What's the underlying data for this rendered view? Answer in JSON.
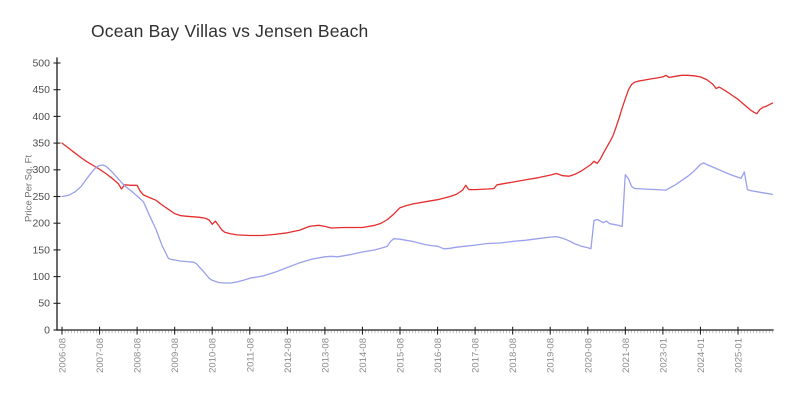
{
  "title": "Ocean Bay Villas vs Jensen Beach",
  "colors": {
    "series_red": "#e62e2e",
    "series_blue": "#9ba0ec",
    "axis": "#1c1c1c",
    "major_tick": "#222222",
    "minor_tick": "#999999",
    "x_tick_label": "#8c8c8c",
    "y_tick_label": "#4d4d4d",
    "axis_title": "#6e6e6e",
    "title_text": "#303030",
    "background": "#ffffff"
  },
  "chart_data": {
    "type": "line",
    "title": "Ocean Bay Villas vs Jensen Beach",
    "xlabel": "",
    "ylabel": "Price Per Sq. Ft",
    "ylim": [
      0,
      500
    ],
    "y_ticks": [
      0,
      50,
      100,
      150,
      200,
      250,
      300,
      350,
      400,
      450,
      500
    ],
    "grid": false,
    "legend": "none",
    "x_tick_labels": [
      "2006-08",
      "2007-08",
      "2008-08",
      "2009-08",
      "2010-08",
      "2011-08",
      "2012-08",
      "2013-08",
      "2014-08",
      "2015-08",
      "2016-08",
      "2017-08",
      "2018-08",
      "2019-08",
      "2020-08",
      "2021-08",
      "2023-01",
      "2024-01",
      "2025-01"
    ],
    "x_tick_sample_indices": [
      0,
      12,
      24,
      36,
      48,
      60,
      72,
      84,
      96,
      108,
      120,
      132,
      144,
      156,
      168,
      180,
      192,
      204,
      216
    ],
    "total_samples": 228,
    "x_minor_tick_every": 1,
    "series": [
      {
        "name": "Ocean Bay Villas",
        "color": "#e62e2e",
        "points": [
          [
            0,
            350
          ],
          [
            2,
            341
          ],
          [
            4,
            332
          ],
          [
            6,
            323
          ],
          [
            8,
            315
          ],
          [
            10,
            308
          ],
          [
            12,
            301
          ],
          [
            14,
            293
          ],
          [
            16,
            284
          ],
          [
            17,
            279
          ],
          [
            18,
            274
          ],
          [
            19,
            264
          ],
          [
            20,
            272
          ],
          [
            22,
            271
          ],
          [
            24,
            271
          ],
          [
            25,
            260
          ],
          [
            26,
            253
          ],
          [
            28,
            248
          ],
          [
            30,
            243
          ],
          [
            32,
            234
          ],
          [
            34,
            226
          ],
          [
            36,
            218
          ],
          [
            38,
            214
          ],
          [
            40,
            213
          ],
          [
            42,
            212
          ],
          [
            44,
            211
          ],
          [
            46,
            209
          ],
          [
            47,
            206
          ],
          [
            48,
            198
          ],
          [
            49,
            204
          ],
          [
            50,
            196
          ],
          [
            51,
            188
          ],
          [
            52,
            183
          ],
          [
            54,
            180
          ],
          [
            56,
            178
          ],
          [
            60,
            177
          ],
          [
            64,
            177
          ],
          [
            68,
            179
          ],
          [
            72,
            182
          ],
          [
            76,
            187
          ],
          [
            79,
            194
          ],
          [
            82,
            196
          ],
          [
            84,
            194
          ],
          [
            86,
            191
          ],
          [
            90,
            192
          ],
          [
            96,
            192
          ],
          [
            100,
            196
          ],
          [
            102,
            200
          ],
          [
            104,
            207
          ],
          [
            106,
            217
          ],
          [
            108,
            229
          ],
          [
            110,
            233
          ],
          [
            112,
            236
          ],
          [
            116,
            240
          ],
          [
            120,
            244
          ],
          [
            124,
            250
          ],
          [
            126,
            254
          ],
          [
            128,
            262
          ],
          [
            129,
            271
          ],
          [
            130,
            263
          ],
          [
            132,
            263
          ],
          [
            136,
            264
          ],
          [
            138,
            265
          ],
          [
            139,
            272
          ],
          [
            142,
            275
          ],
          [
            144,
            277
          ],
          [
            148,
            281
          ],
          [
            152,
            285
          ],
          [
            156,
            290
          ],
          [
            158,
            293
          ],
          [
            160,
            289
          ],
          [
            162,
            288
          ],
          [
            164,
            292
          ],
          [
            166,
            298
          ],
          [
            168,
            306
          ],
          [
            169,
            310
          ],
          [
            170,
            316
          ],
          [
            171,
            312
          ],
          [
            172,
            320
          ],
          [
            173,
            331
          ],
          [
            174,
            342
          ],
          [
            175,
            352
          ],
          [
            176,
            363
          ],
          [
            177,
            379
          ],
          [
            178,
            397
          ],
          [
            179,
            416
          ],
          [
            180,
            433
          ],
          [
            181,
            450
          ],
          [
            182,
            460
          ],
          [
            183,
            464
          ],
          [
            184,
            466
          ],
          [
            186,
            468
          ],
          [
            188,
            470
          ],
          [
            190,
            472
          ],
          [
            192,
            474
          ],
          [
            193,
            477
          ],
          [
            194,
            473
          ],
          [
            196,
            475
          ],
          [
            198,
            477
          ],
          [
            200,
            477
          ],
          [
            202,
            476
          ],
          [
            204,
            474
          ],
          [
            206,
            469
          ],
          [
            208,
            460
          ],
          [
            209,
            452
          ],
          [
            210,
            455
          ],
          [
            212,
            448
          ],
          [
            214,
            440
          ],
          [
            216,
            432
          ],
          [
            218,
            422
          ],
          [
            220,
            412
          ],
          [
            221,
            408
          ],
          [
            222,
            405
          ],
          [
            223,
            413
          ],
          [
            224,
            417
          ],
          [
            225,
            419
          ],
          [
            226,
            422
          ],
          [
            227,
            425
          ]
        ]
      },
      {
        "name": "Jensen Beach",
        "color": "#9ba0ec",
        "points": [
          [
            0,
            250
          ],
          [
            2,
            252
          ],
          [
            4,
            258
          ],
          [
            6,
            268
          ],
          [
            8,
            284
          ],
          [
            10,
            299
          ],
          [
            11,
            305
          ],
          [
            12,
            308
          ],
          [
            13,
            309
          ],
          [
            14,
            307
          ],
          [
            16,
            296
          ],
          [
            18,
            283
          ],
          [
            20,
            270
          ],
          [
            22,
            261
          ],
          [
            24,
            251
          ],
          [
            26,
            240
          ],
          [
            28,
            214
          ],
          [
            30,
            189
          ],
          [
            32,
            158
          ],
          [
            34,
            134
          ],
          [
            35,
            132
          ],
          [
            36,
            131
          ],
          [
            38,
            129
          ],
          [
            40,
            128
          ],
          [
            42,
            127
          ],
          [
            43,
            124
          ],
          [
            44,
            117
          ],
          [
            45,
            111
          ],
          [
            46,
            104
          ],
          [
            47,
            97
          ],
          [
            48,
            93
          ],
          [
            50,
            89
          ],
          [
            52,
            88
          ],
          [
            54,
            88
          ],
          [
            56,
            90
          ],
          [
            58,
            93
          ],
          [
            60,
            97
          ],
          [
            62,
            99
          ],
          [
            64,
            101
          ],
          [
            68,
            108
          ],
          [
            72,
            117
          ],
          [
            76,
            126
          ],
          [
            80,
            133
          ],
          [
            84,
            137
          ],
          [
            86,
            138
          ],
          [
            88,
            137
          ],
          [
            90,
            139
          ],
          [
            92,
            141
          ],
          [
            96,
            146
          ],
          [
            100,
            150
          ],
          [
            103,
            155
          ],
          [
            104,
            157
          ],
          [
            105,
            166
          ],
          [
            106,
            171
          ],
          [
            108,
            170
          ],
          [
            110,
            168
          ],
          [
            112,
            166
          ],
          [
            114,
            163
          ],
          [
            116,
            160
          ],
          [
            118,
            158
          ],
          [
            120,
            157
          ],
          [
            122,
            152
          ],
          [
            124,
            153
          ],
          [
            126,
            155
          ],
          [
            129,
            157
          ],
          [
            132,
            159
          ],
          [
            136,
            162
          ],
          [
            140,
            163
          ],
          [
            144,
            166
          ],
          [
            148,
            168
          ],
          [
            152,
            171
          ],
          [
            156,
            174
          ],
          [
            158,
            175
          ],
          [
            160,
            172
          ],
          [
            162,
            167
          ],
          [
            164,
            161
          ],
          [
            166,
            157
          ],
          [
            168,
            154
          ],
          [
            169,
            152
          ],
          [
            170,
            205
          ],
          [
            171,
            207
          ],
          [
            172,
            204
          ],
          [
            173,
            201
          ],
          [
            174,
            204
          ],
          [
            175,
            199
          ],
          [
            177,
            197
          ],
          [
            179,
            194
          ],
          [
            180,
            291
          ],
          [
            181,
            283
          ],
          [
            182,
            269
          ],
          [
            183,
            265
          ],
          [
            186,
            264
          ],
          [
            190,
            263
          ],
          [
            193,
            262
          ],
          [
            196,
            272
          ],
          [
            200,
            288
          ],
          [
            202,
            298
          ],
          [
            204,
            310
          ],
          [
            205,
            313
          ],
          [
            206,
            310
          ],
          [
            208,
            305
          ],
          [
            210,
            300
          ],
          [
            212,
            295
          ],
          [
            214,
            290
          ],
          [
            216,
            286
          ],
          [
            217,
            284
          ],
          [
            218,
            296
          ],
          [
            219,
            263
          ],
          [
            220,
            261
          ],
          [
            222,
            259
          ],
          [
            224,
            257
          ],
          [
            226,
            255
          ],
          [
            227,
            254
          ]
        ]
      }
    ]
  }
}
